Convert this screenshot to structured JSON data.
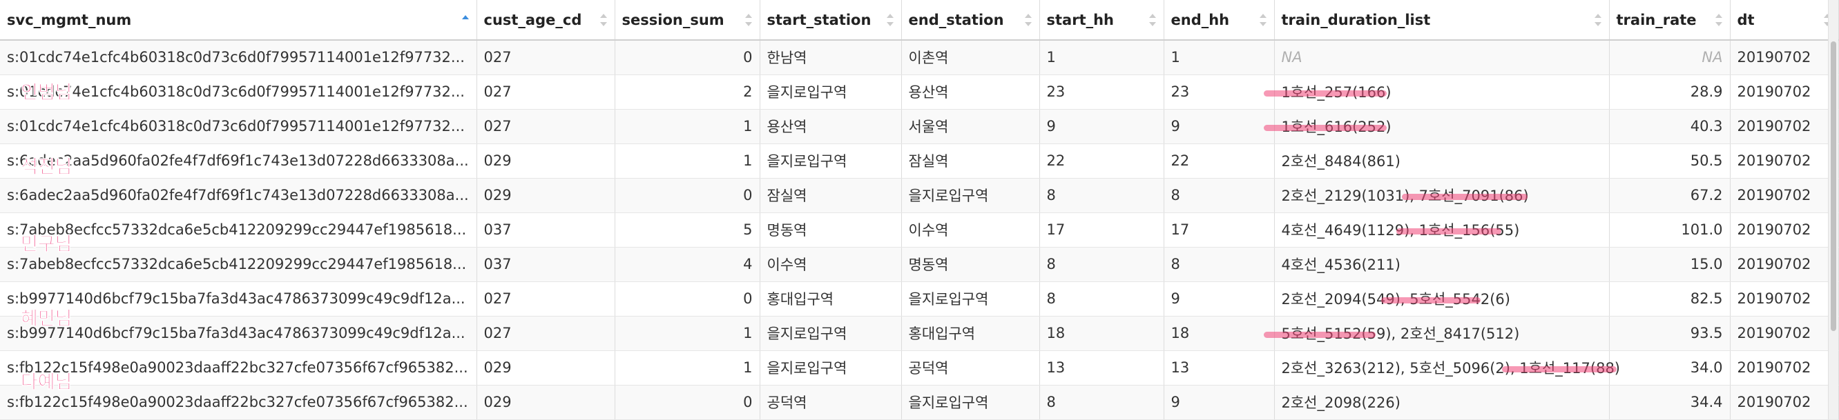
{
  "columns": [
    {
      "label": "svc_mgmt_num",
      "sort": "asc"
    },
    {
      "label": "cust_age_cd",
      "sort": "none"
    },
    {
      "label": "session_sum",
      "sort": "none"
    },
    {
      "label": "start_station",
      "sort": "none"
    },
    {
      "label": "end_station",
      "sort": "none"
    },
    {
      "label": "start_hh",
      "sort": "none"
    },
    {
      "label": "end_hh",
      "sort": "none"
    },
    {
      "label": "train_duration_list",
      "sort": "none"
    },
    {
      "label": "train_rate",
      "sort": "none"
    },
    {
      "label": "dt",
      "sort": "none"
    }
  ],
  "rows": [
    [
      "s:01cdc74e1cfc4b60318c0d73c6d0f79957114001e12f97732...",
      "027",
      "0",
      "한남역",
      "이촌역",
      "1",
      "1",
      "NA",
      "NA",
      "20190702"
    ],
    [
      "s:01cdc74e1cfc4b60318c0d73c6d0f79957114001e12f97732...",
      "027",
      "2",
      "을지로입구역",
      "용산역",
      "23",
      "23",
      "1호선_257(166)",
      "28.9",
      "20190702"
    ],
    [
      "s:01cdc74e1cfc4b60318c0d73c6d0f79957114001e12f97732...",
      "027",
      "1",
      "용산역",
      "서울역",
      "9",
      "9",
      "1호선_616(252)",
      "40.3",
      "20190702"
    ],
    [
      "s:6adec2aa5d960fa02fe4f7df69f1c743e13d07228d6633308a...",
      "029",
      "1",
      "을지로입구역",
      "잠실역",
      "22",
      "22",
      "2호선_8484(861)",
      "50.5",
      "20190702"
    ],
    [
      "s:6adec2aa5d960fa02fe4f7df69f1c743e13d07228d6633308a...",
      "029",
      "0",
      "잠실역",
      "을지로입구역",
      "8",
      "8",
      "2호선_2129(1031), 7호선_7091(86)",
      "67.2",
      "20190702"
    ],
    [
      "s:7abeb8ecfcc57332dca6e5cb412209299cc29447ef1985618...",
      "037",
      "5",
      "명동역",
      "이수역",
      "17",
      "17",
      "4호선_4649(1129), 1호선_156(55)",
      "101.0",
      "20190702"
    ],
    [
      "s:7abeb8ecfcc57332dca6e5cb412209299cc29447ef1985618...",
      "037",
      "4",
      "이수역",
      "명동역",
      "8",
      "8",
      "4호선_4536(211)",
      "15.0",
      "20190702"
    ],
    [
      "s:b9977140d6bcf79c15ba7fa3d43ac4786373099c49c9df12a...",
      "027",
      "0",
      "홍대입구역",
      "을지로입구역",
      "8",
      "9",
      "2호선_2094(549), 5호선_5542(6)",
      "82.5",
      "20190702"
    ],
    [
      "s:b9977140d6bcf79c15ba7fa3d43ac4786373099c49c9df12a...",
      "027",
      "1",
      "을지로입구역",
      "홍대입구역",
      "18",
      "18",
      "5호선_5152(59), 2호선_8417(512)",
      "93.5",
      "20190702"
    ],
    [
      "s:fb122c15f498e0a90023daaff22bc327cfe07356f67cf965382...",
      "029",
      "1",
      "을지로입구역",
      "공덕역",
      "13",
      "13",
      "2호선_3263(212), 5호선_5096(2), 1호선_117(88)",
      "34.0",
      "20190702"
    ],
    [
      "s:fb122c15f498e0a90023daaff22bc327cfe07356f67cf965382...",
      "029",
      "0",
      "공덕역",
      "을지로입구역",
      "8",
      "9",
      "2호선_2098(226)",
      "34.4",
      "20190702"
    ]
  ],
  "annotations": [
    {
      "text": "인범님"
    },
    {
      "text": "석진님"
    },
    {
      "text": "민구님"
    },
    {
      "text": "혜민님"
    },
    {
      "text": "다예님"
    }
  ],
  "colors": {
    "annotation_text": "#f0397a",
    "highlight": "#f04678",
    "sort_active": "#3c8dde"
  }
}
